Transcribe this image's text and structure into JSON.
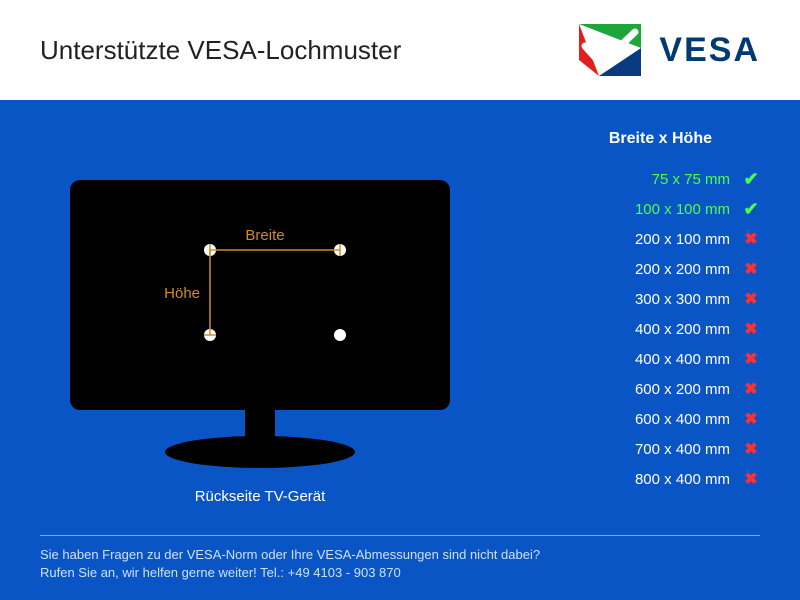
{
  "header": {
    "title": "Unterstützte VESA-Lochmuster",
    "brand": "VESA",
    "logo": {
      "green": "#1fa63b",
      "red": "#e11f1f",
      "blue": "#0a3a80",
      "text_color": "#003a70"
    }
  },
  "body": {
    "background_color": "#0a55c6",
    "tv": {
      "caption": "Rückseite TV-Gerät",
      "width_label": "Breite",
      "height_label": "Höhe",
      "fill": "#000000",
      "line_color": "#d08a2a",
      "dot_color": "#ffffff",
      "label_color": "#d08a2a"
    },
    "list": {
      "header": "Breite x Höhe",
      "ok_color": "#4cff4c",
      "no_color": "#ff3030",
      "text_color": "#ffffff",
      "items": [
        {
          "label": "75 x 75 mm",
          "supported": true
        },
        {
          "label": "100 x 100 mm",
          "supported": true
        },
        {
          "label": "200 x 100 mm",
          "supported": false
        },
        {
          "label": "200 x 200 mm",
          "supported": false
        },
        {
          "label": "300 x 300 mm",
          "supported": false
        },
        {
          "label": "400 x 200 mm",
          "supported": false
        },
        {
          "label": "400 x 400 mm",
          "supported": false
        },
        {
          "label": "600 x 200 mm",
          "supported": false
        },
        {
          "label": "600 x 400 mm",
          "supported": false
        },
        {
          "label": "700 x 400 mm",
          "supported": false
        },
        {
          "label": "800 x 400 mm",
          "supported": false
        }
      ]
    }
  },
  "footer": {
    "line1": "Sie haben Fragen zu der VESA-Norm oder Ihre VESA-Abmessungen sind nicht dabei?",
    "line2": "Rufen Sie an, wir helfen gerne weiter! Tel.: +49 4103 - 903 870",
    "text_color": "#cfe0ff",
    "rule_color": "#7da8e6"
  }
}
